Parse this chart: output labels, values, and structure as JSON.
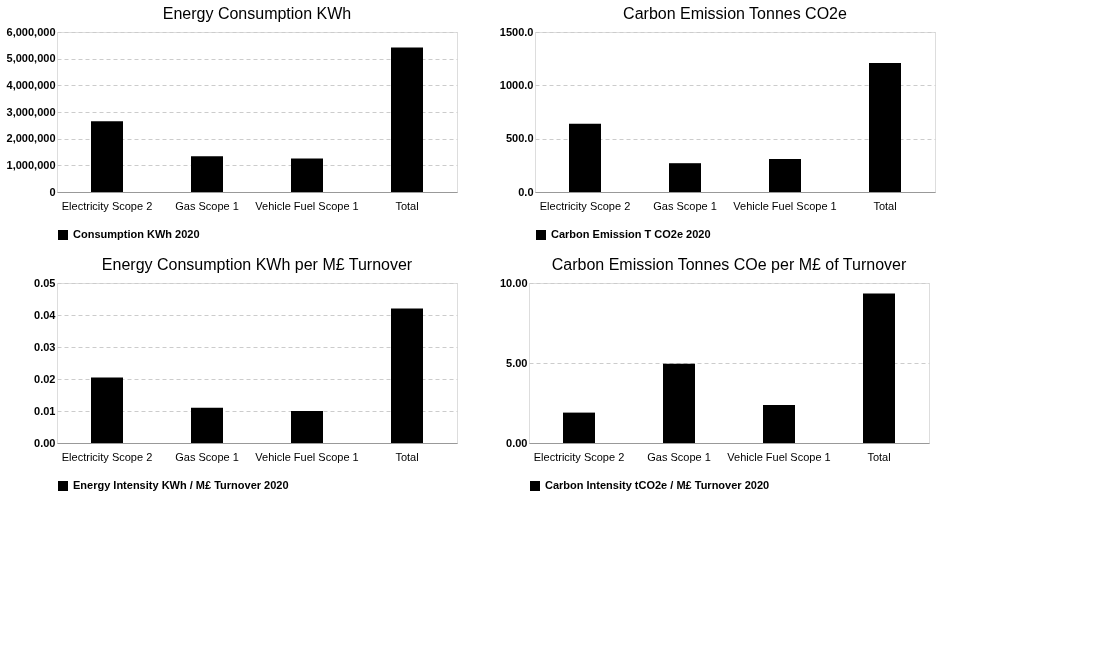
{
  "chart_data": [
    {
      "type": "bar",
      "title": "Energy Consumption KWh",
      "categories": [
        "Electricity Scope 2",
        "Gas Scope 1",
        "Vehicle Fuel Scope 1",
        "Total"
      ],
      "series": [
        {
          "name": "Consumption KWh 2020",
          "color": "#000000",
          "values": [
            2650000,
            1340000,
            1260000,
            5420000
          ]
        }
      ],
      "ylim": [
        0,
        6000000
      ],
      "yticks": [
        0,
        {
          "value": 1000000,
          "label": "1,000,000"
        },
        {
          "value": 2000000,
          "label": "2,000,000"
        },
        {
          "value": 3000000,
          "label": "3,000,000"
        },
        {
          "value": 4000000,
          "label": "4,000,000"
        },
        {
          "value": 5000000,
          "label": "5,000,000"
        },
        {
          "value": 6000000,
          "label": "6,000,000"
        }
      ],
      "grid": "y",
      "legend": "bottom"
    },
    {
      "type": "bar",
      "title": "Carbon Emission Tonnes CO2e",
      "categories": [
        "Electricity Scope 2",
        "Gas Scope 1",
        "Vehicle Fuel Scope 1",
        "Total"
      ],
      "series": [
        {
          "name": "Carbon Emission T CO2e 2020",
          "color": "#000000",
          "values": [
            640,
            270,
            310,
            1210
          ]
        }
      ],
      "ylim": [
        0,
        1500
      ],
      "yticks": [
        {
          "value": 0,
          "label": "0.0"
        },
        {
          "value": 500,
          "label": "500.0"
        },
        {
          "value": 1000,
          "label": "1000.0"
        },
        {
          "value": 1500,
          "label": "1500.0"
        }
      ],
      "grid": "y",
      "legend": "bottom"
    },
    {
      "type": "bar",
      "title": "Energy Consumption KWh per M£ Turnover",
      "categories": [
        "Electricity Scope 2",
        "Gas Scope 1",
        "Vehicle Fuel Scope 1",
        "Total"
      ],
      "series": [
        {
          "name": "Energy Intensity KWh / M£ Turnover 2020",
          "color": "#000000",
          "values": [
            0.0205,
            0.011,
            0.01,
            0.042
          ]
        }
      ],
      "ylim": [
        0,
        0.05
      ],
      "yticks": [
        {
          "value": 0,
          "label": "0.00"
        },
        {
          "value": 0.01,
          "label": "0.01"
        },
        {
          "value": 0.02,
          "label": "0.02"
        },
        {
          "value": 0.03,
          "label": "0.03"
        },
        {
          "value": 0.04,
          "label": "0.04"
        },
        {
          "value": 0.05,
          "label": "0.05"
        }
      ],
      "grid": "y",
      "legend": "bottom"
    },
    {
      "type": "bar",
      "title": "Carbon Emission Tonnes COe per M£ of Turnover",
      "categories": [
        "Electricity Scope 2",
        "Gas Scope 1",
        "Vehicle Fuel Scope 1",
        "Total"
      ],
      "series": [
        {
          "name": "Carbon Intensity tCO2e / M£ Turnover 2020",
          "color": "#000000",
          "values": [
            1.9,
            4.96,
            2.37,
            9.35
          ]
        }
      ],
      "ylim": [
        0,
        10
      ],
      "yticks": [
        {
          "value": 0,
          "label": "0.00"
        },
        {
          "value": 5,
          "label": "5.00"
        },
        {
          "value": 10,
          "label": "10.00"
        }
      ],
      "grid": "y",
      "legend": "bottom"
    }
  ]
}
